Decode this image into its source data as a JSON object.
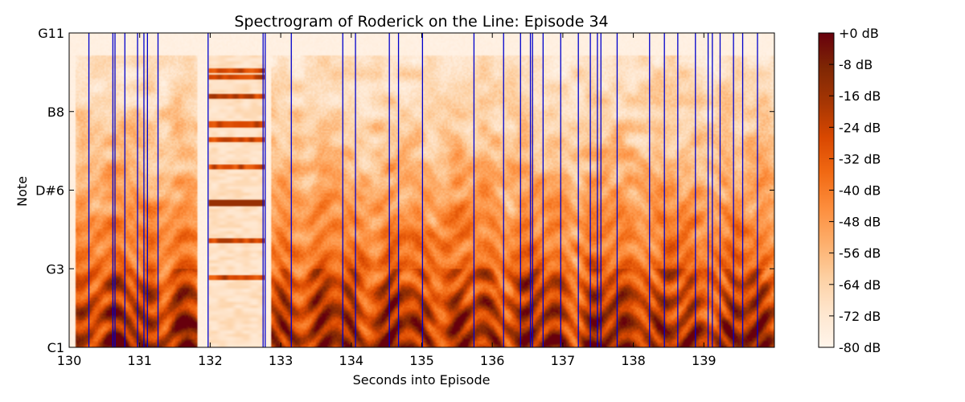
{
  "chart_data": {
    "type": "heatmap",
    "title": "Spectrogram of Roderick on the Line: Episode 34",
    "xlabel": "Seconds into Episode",
    "ylabel": "Note",
    "xlim": [
      130,
      140
    ],
    "x_ticks": [
      130,
      131,
      132,
      133,
      134,
      135,
      136,
      137,
      138,
      139
    ],
    "x_tick_labels": [
      "130",
      "131",
      "132",
      "133",
      "134",
      "135",
      "136",
      "137",
      "138",
      "139"
    ],
    "y_tick_labels": [
      "C1",
      "G3",
      "D#6",
      "B8",
      "G11"
    ],
    "colorbar": {
      "range_db": [
        -80,
        0
      ],
      "tick_labels": [
        "+0 dB",
        "-8 dB",
        "-16 dB",
        "-24 dB",
        "-32 dB",
        "-40 dB",
        "-48 dB",
        "-56 dB",
        "-64 dB",
        "-72 dB",
        "-80 dB"
      ],
      "colormap": [
        "#fff5eb",
        "#fee6ce",
        "#fdd0a2",
        "#fdae6b",
        "#fd8d3c",
        "#f16913",
        "#d94801",
        "#a63603",
        "#7f2704",
        "#67000d"
      ]
    },
    "onset_lines_seconds": [
      130.28,
      130.62,
      130.65,
      130.79,
      130.97,
      131.06,
      131.11,
      131.26,
      131.97,
      132.75,
      132.78,
      133.15,
      133.88,
      134.06,
      134.54,
      134.67,
      135.01,
      135.74,
      136.16,
      136.4,
      136.54,
      136.57,
      136.72,
      136.97,
      137.22,
      137.39,
      137.49,
      137.54,
      137.77,
      138.23,
      138.44,
      138.63,
      138.88,
      139.06,
      139.12,
      139.23,
      139.42,
      139.55,
      139.76
    ],
    "onset_line_color": "#0000cc",
    "silence_regions_seconds": [
      [
        131.8,
        131.98
      ],
      [
        132.76,
        132.86
      ]
    ],
    "tonal_band_notes": [
      [
        "F#9",
        -18
      ],
      [
        "A8",
        -24
      ],
      [
        "D#8",
        -26
      ],
      [
        "C#7",
        -28
      ],
      [
        "D#6",
        -14
      ],
      [
        "C5",
        -30
      ],
      [
        "C3",
        -34
      ]
    ],
    "tonal_band_span_seconds": [
      131.98,
      132.76
    ]
  }
}
